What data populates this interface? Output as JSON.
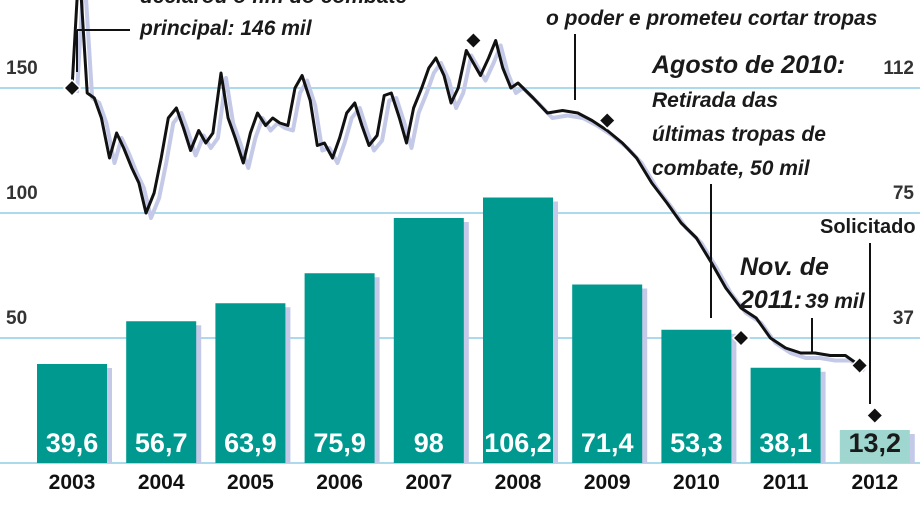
{
  "chart_data": {
    "type": "bar",
    "categories": [
      "2003",
      "2004",
      "2005",
      "2006",
      "2007",
      "2008",
      "2009",
      "2010",
      "2011",
      "2012"
    ],
    "values": [
      39.6,
      56.7,
      63.9,
      75.9,
      98,
      106.2,
      71.4,
      53.3,
      38.1,
      13.2
    ],
    "value_labels": [
      "39,6",
      "56,7",
      "63,9",
      "75,9",
      "98",
      "106,2",
      "71,4",
      "53,3",
      "38,1",
      "13,2"
    ],
    "requested_index": 9,
    "left_axis": {
      "ticks": [
        150,
        100,
        50
      ],
      "tick_labels": [
        "150",
        "100",
        "50"
      ],
      "range": [
        0,
        190
      ]
    },
    "right_axis": {
      "ticks": [
        112,
        75,
        37
      ],
      "tick_labels": [
        "112",
        "75",
        "37"
      ],
      "range": [
        0,
        142.5
      ]
    },
    "troop_line": {
      "x": [
        2003.0,
        2003.08,
        2003.17,
        2003.25,
        2003.33,
        2003.42,
        2003.5,
        2003.58,
        2003.67,
        2003.75,
        2003.83,
        2003.92,
        2004.0,
        2004.08,
        2004.17,
        2004.25,
        2004.33,
        2004.42,
        2004.5,
        2004.58,
        2004.67,
        2004.75,
        2004.83,
        2004.92,
        2005.0,
        2005.08,
        2005.17,
        2005.25,
        2005.33,
        2005.42,
        2005.5,
        2005.58,
        2005.67,
        2005.75,
        2005.83,
        2005.92,
        2006.0,
        2006.08,
        2006.17,
        2006.25,
        2006.33,
        2006.42,
        2006.5,
        2006.58,
        2006.67,
        2006.75,
        2006.83,
        2006.92,
        2007.0,
        2007.08,
        2007.17,
        2007.25,
        2007.33,
        2007.42,
        2007.5,
        2007.58,
        2007.67,
        2007.75,
        2007.83,
        2007.92,
        2008.0,
        2008.17,
        2008.33,
        2008.5,
        2008.67,
        2008.83,
        2009.0,
        2009.17,
        2009.33,
        2009.5,
        2009.67,
        2009.83,
        2010.0,
        2010.17,
        2010.33,
        2010.5,
        2010.67,
        2010.83,
        2011.0,
        2011.17,
        2011.33,
        2011.5,
        2011.67,
        2011.83
      ],
      "y": [
        150,
        200,
        148,
        146,
        138,
        122,
        132,
        126,
        118,
        112,
        100,
        108,
        122,
        138,
        142,
        134,
        125,
        133,
        128,
        132,
        156,
        138,
        130,
        120,
        132,
        140,
        135,
        138,
        136,
        135,
        150,
        155,
        145,
        127,
        128,
        122,
        130,
        140,
        144,
        135,
        127,
        131,
        147,
        148,
        138,
        128,
        142,
        150,
        158,
        162,
        155,
        144,
        150,
        165,
        160,
        155,
        162,
        169,
        158,
        150,
        152,
        146,
        140,
        141,
        140,
        137,
        133,
        128,
        122,
        112,
        104,
        96,
        90,
        80,
        70,
        62,
        58,
        50,
        46,
        44,
        44,
        43,
        43,
        39
      ]
    },
    "markers": [
      {
        "x": 2003.0,
        "y": 150
      },
      {
        "x": 2007.5,
        "y": 169
      },
      {
        "x": 2009.0,
        "y": 137
      },
      {
        "x": 2010.5,
        "y": 50
      },
      {
        "x": 2011.83,
        "y": 39
      },
      {
        "x": 2012.0,
        "y": 19
      }
    ],
    "annotations": {
      "a1_title_fragment": "declarou o fim do combate",
      "a1_body": "principal: 146 mil",
      "a2_body": "o poder e prometeu cortar tropas",
      "a3_title": "Agosto de 2010:",
      "a3_body1": "Retirada das",
      "a3_body2": "últimas tropas de",
      "a3_body3": "combate, 50 mil",
      "a4_title1": "Nov. de",
      "a4_title2": "2011:",
      "a4_body": "39 mil",
      "a5": "Solicitado"
    },
    "colors": {
      "bar": "#00998f",
      "bar_requested": "#9fd6cf",
      "bar_shadow": "#c4c9e8",
      "gridline": "#8ecde6",
      "line": "#111111",
      "line_shadow": "#c4c9e8"
    }
  }
}
